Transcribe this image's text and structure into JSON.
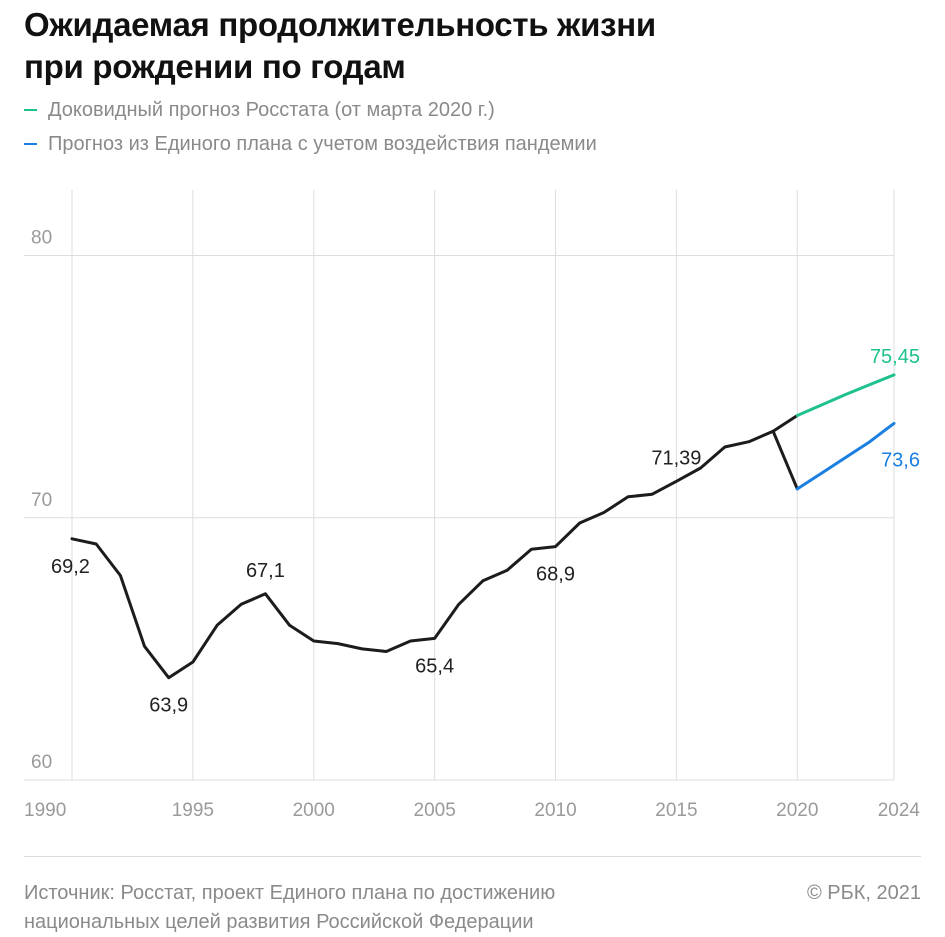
{
  "title_line1": "Ожидаемая продолжительность жизни",
  "title_line2": "при рождении по годам",
  "legend": [
    {
      "label": "Доковидный прогноз Росстата (от марта 2020 г.)",
      "color": "#1fc18f"
    },
    {
      "label": "Прогноз из Единого плана с учетом воздействия пандемии",
      "color": "#1a7fe0"
    }
  ],
  "colors": {
    "actual": "#1c1c1c",
    "grid": "#dedede",
    "axis_text": "#9a9a9a"
  },
  "chart_data": {
    "type": "line",
    "title": "Ожидаемая продолжительность жизни при рождении по годам",
    "xlabel": "",
    "ylabel": "",
    "xlim": [
      1990,
      2024
    ],
    "ylim": [
      60,
      82.5
    ],
    "x_ticks": [
      1990,
      1995,
      2000,
      2005,
      2010,
      2015,
      2020,
      2024
    ],
    "y_ticks": [
      60,
      70,
      80
    ],
    "grid": true,
    "legend_position": "top-left",
    "series": [
      {
        "key": "actual",
        "x": [
          1990,
          1991,
          1992,
          1993,
          1994,
          1995,
          1996,
          1997,
          1998,
          1999,
          2000,
          2001,
          2002,
          2003,
          2004,
          2005,
          2006,
          2007,
          2008,
          2009,
          2010,
          2011,
          2012,
          2013,
          2014,
          2015,
          2016,
          2017,
          2018,
          2019,
          2020
        ],
        "y": [
          69.2,
          69.0,
          67.8,
          65.1,
          63.9,
          64.5,
          65.9,
          66.7,
          67.1,
          65.9,
          65.3,
          65.2,
          65.0,
          64.9,
          65.3,
          65.4,
          66.7,
          67.6,
          68.0,
          68.8,
          68.9,
          69.8,
          70.2,
          70.8,
          70.9,
          71.39,
          71.9,
          72.7,
          72.9,
          73.3,
          73.9
        ]
      },
      {
        "key": "actual_drop",
        "x": [
          2019,
          2020
        ],
        "y": [
          73.3,
          71.1
        ]
      },
      {
        "name": "Доковидный прогноз Росстата (от марта 2020 г.)",
        "key": "forecast_prepandemic",
        "x": [
          2020,
          2021,
          2022,
          2023,
          2024
        ],
        "y": [
          73.9,
          74.3,
          74.7,
          75.08,
          75.45
        ]
      },
      {
        "name": "Прогноз из Единого плана с учетом воздействия пандемии",
        "key": "forecast_pandemic",
        "x": [
          2020,
          2021,
          2022,
          2023,
          2024
        ],
        "y": [
          71.1,
          71.7,
          72.3,
          72.9,
          73.6
        ]
      }
    ],
    "annotations": [
      {
        "text": "69,2",
        "x": 1990,
        "y": 69.2,
        "series": "actual",
        "pos": "below"
      },
      {
        "text": "63,9",
        "x": 1994,
        "y": 63.9,
        "series": "actual",
        "pos": "below"
      },
      {
        "text": "67,1",
        "x": 1998,
        "y": 67.1,
        "series": "actual",
        "pos": "above"
      },
      {
        "text": "65,4",
        "x": 2005,
        "y": 65.4,
        "series": "actual",
        "pos": "below"
      },
      {
        "text": "68,9",
        "x": 2010,
        "y": 68.9,
        "series": "actual",
        "pos": "below"
      },
      {
        "text": "71,39",
        "x": 2015,
        "y": 71.39,
        "series": "actual",
        "pos": "above"
      },
      {
        "text": "75,45",
        "x": 2024,
        "y": 75.45,
        "series": "forecast_prepandemic",
        "pos": "above"
      },
      {
        "text": "73,6",
        "x": 2024,
        "y": 73.6,
        "series": "forecast_pandemic",
        "pos": "below"
      }
    ]
  },
  "footer": {
    "source_line1": "Источник: Росстат, проект Единого плана по достижению",
    "source_line2": "национальных целей развития Российской Федерации",
    "copyright": "© РБК, 2021"
  }
}
